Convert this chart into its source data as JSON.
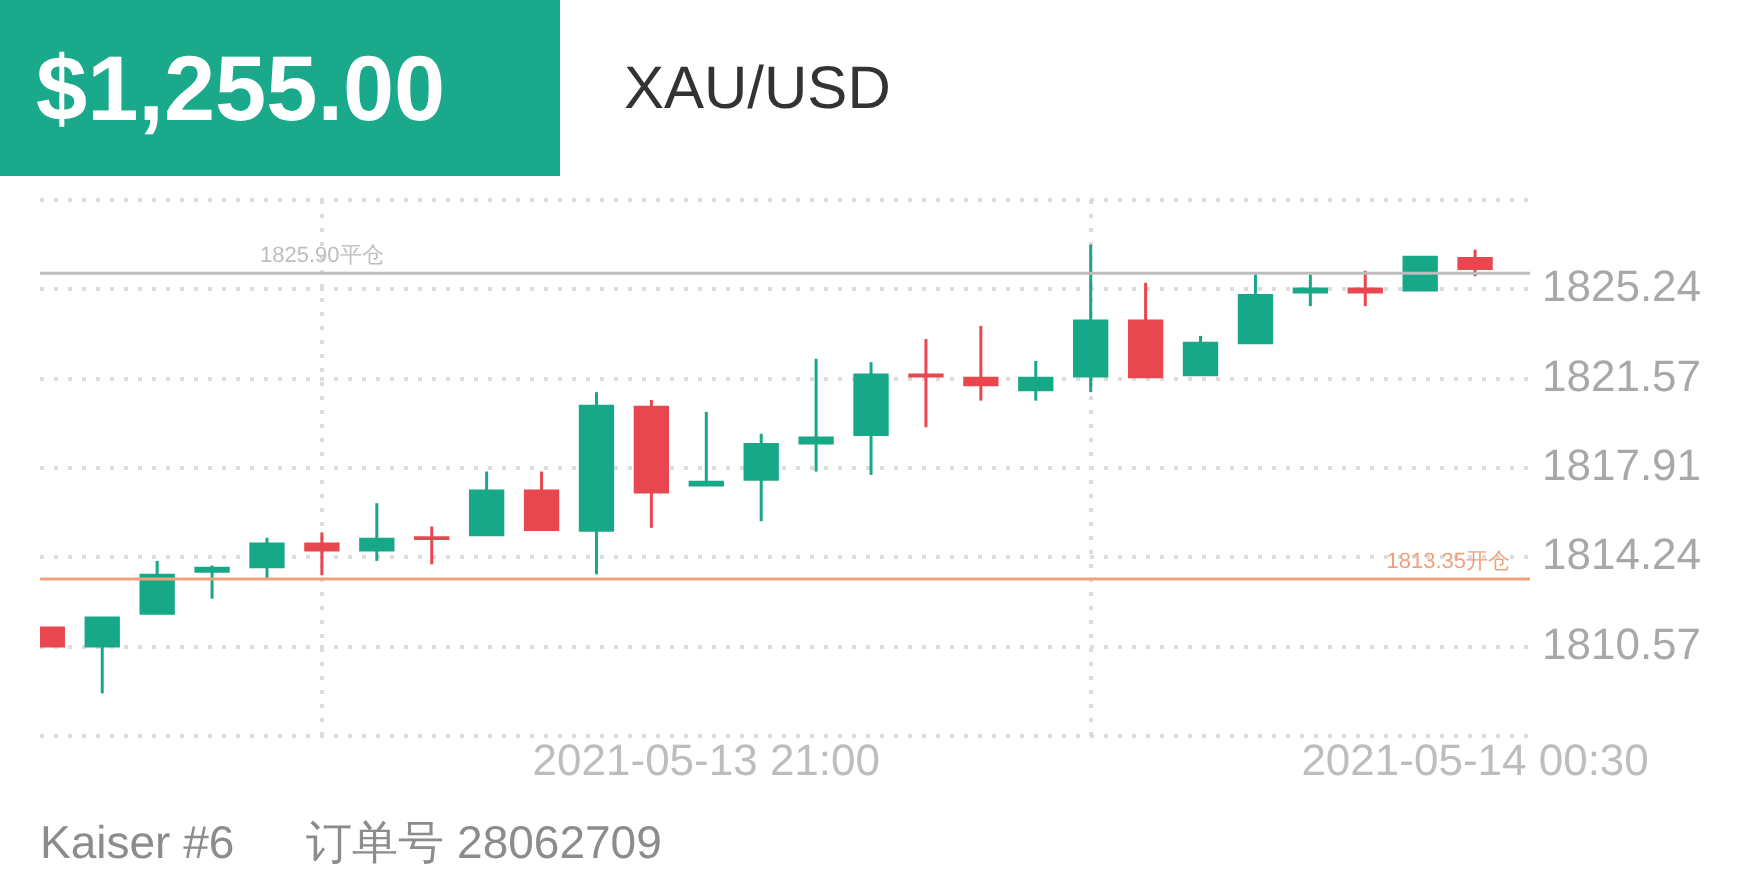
{
  "chart_data": {
    "type": "candlestick",
    "title": "$1,255.00",
    "subtitle": "XAU/USD",
    "x": [
      "2021-05-13T18:00",
      "2021-05-13T18:15",
      "2021-05-13T18:30",
      "2021-05-13T18:45",
      "2021-05-13T19:00",
      "2021-05-13T19:15",
      "2021-05-13T19:30",
      "2021-05-13T19:45",
      "2021-05-13T20:00",
      "2021-05-13T20:15",
      "2021-05-13T20:30",
      "2021-05-13T20:45",
      "2021-05-13T21:00",
      "2021-05-13T21:15",
      "2021-05-13T21:30",
      "2021-05-13T21:45",
      "2021-05-13T22:00",
      "2021-05-13T22:15",
      "2021-05-13T22:30",
      "2021-05-13T22:45",
      "2021-05-13T23:00",
      "2021-05-13T23:15",
      "2021-05-13T23:30",
      "2021-05-13T23:45",
      "2021-05-14T00:00",
      "2021-05-14T00:15",
      "2021-05-14T00:30"
    ],
    "ohlc": [
      [
        1811.37,
        1811.37,
        1810.56,
        1810.56
      ],
      [
        1810.56,
        1811.78,
        1808.65,
        1811.78
      ],
      [
        1811.91,
        1814.09,
        1811.91,
        1813.54
      ],
      [
        1813.63,
        1813.9,
        1812.54,
        1813.82
      ],
      [
        1813.82,
        1815.04,
        1813.36,
        1814.82
      ],
      [
        1814.82,
        1815.26,
        1813.5,
        1814.5
      ],
      [
        1814.5,
        1816.46,
        1814.09,
        1815.01
      ],
      [
        1815.08,
        1815.5,
        1813.95,
        1814.98
      ],
      [
        1815.13,
        1817.76,
        1815.13,
        1817.0
      ],
      [
        1817.0,
        1817.76,
        1815.34,
        1815.34
      ],
      [
        1815.31,
        1821.02,
        1813.54,
        1820.48
      ],
      [
        1820.43,
        1820.7,
        1815.45,
        1816.89
      ],
      [
        1817.17,
        1820.21,
        1817.17,
        1817.35
      ],
      [
        1817.41,
        1819.31,
        1815.72,
        1818.9
      ],
      [
        1818.9,
        1822.39,
        1817.76,
        1819.17
      ],
      [
        1819.25,
        1822.25,
        1817.62,
        1821.76
      ],
      [
        1821.76,
        1823.2,
        1819.58,
        1821.65
      ],
      [
        1821.62,
        1823.74,
        1820.67,
        1821.29
      ],
      [
        1821.08,
        1822.3,
        1820.67,
        1821.62
      ],
      [
        1821.65,
        1827.08,
        1821.02,
        1823.98
      ],
      [
        1823.98,
        1825.51,
        1821.62,
        1821.62
      ],
      [
        1821.7,
        1823.33,
        1821.7,
        1823.06
      ],
      [
        1823.01,
        1825.86,
        1823.01,
        1825.02
      ],
      [
        1825.1,
        1825.84,
        1824.55,
        1825.29
      ],
      [
        1825.29,
        1826.0,
        1824.55,
        1825.1
      ],
      [
        1825.18,
        1826.59,
        1825.18,
        1826.59
      ],
      [
        1826.54,
        1826.87,
        1825.78,
        1826.06
      ]
    ],
    "colors": [
      "#e8474f",
      "#17a887",
      "#17a887",
      "#17a887",
      "#17a887",
      "#e8474f",
      "#17a887",
      "#e8474f",
      "#17a887",
      "#e8474f",
      "#17a887",
      "#e8474f",
      "#17a887",
      "#17a887",
      "#17a887",
      "#17a887",
      "#e8474f",
      "#e8474f",
      "#17a887",
      "#17a887",
      "#e8474f",
      "#17a887",
      "#17a887",
      "#17a887",
      "#e8474f",
      "#17a887",
      "#e8474f"
    ],
    "xlim": [
      "2021-05-13T17:58",
      "2021-05-14T00:45"
    ],
    "xticks": [
      {
        "value": "2021-05-13T21:00",
        "label": "2021-05-13 21:00"
      },
      {
        "value": "2021-05-14T00:30",
        "label": "2021-05-14 00:30"
      }
    ],
    "ylim": [
      1806.9,
      1828.91
    ],
    "yticks": [
      1810.57,
      1814.24,
      1817.91,
      1821.57,
      1825.24
    ],
    "grid": true,
    "ref_lines": [
      {
        "axis": "y",
        "value": 1825.9,
        "label": "1825.90平仓",
        "color": "#bdbdbd"
      },
      {
        "axis": "y",
        "value": 1813.35,
        "label": "1813.35开仓",
        "color": "#f0a07a"
      }
    ],
    "annotations": [
      "Kaiser #6",
      "订单号 28062709"
    ]
  }
}
